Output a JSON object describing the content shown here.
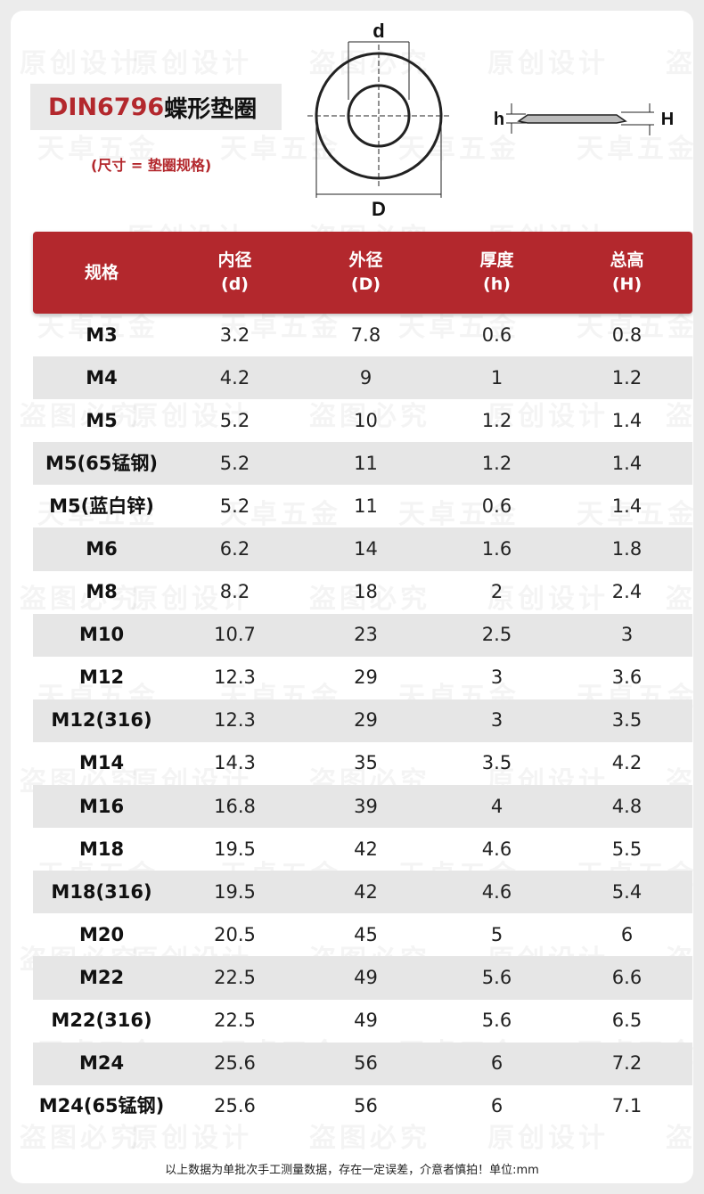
{
  "title": {
    "code": "DIN6796",
    "name": "蝶形垫圈"
  },
  "subtitle": "(尺寸 = 垫圈规格)",
  "diagram": {
    "label_inner": "d",
    "label_outer": "D",
    "label_h": "h",
    "label_H": "H"
  },
  "watermarks": [
    "天卓五金",
    "原创设计",
    "盗图必究"
  ],
  "table": {
    "headers": [
      {
        "line1": "规格",
        "line2": ""
      },
      {
        "line1": "内径",
        "line2": "(d)"
      },
      {
        "line1": "外径",
        "line2": "(D)"
      },
      {
        "line1": "厚度",
        "line2": "(h)"
      },
      {
        "line1": "总高",
        "line2": "(H)"
      }
    ],
    "rows": [
      [
        "M3",
        "3.2",
        "7.8",
        "0.6",
        "0.8"
      ],
      [
        "M4",
        "4.2",
        "9",
        "1",
        "1.2"
      ],
      [
        "M5",
        "5.2",
        "10",
        "1.2",
        "1.4"
      ],
      [
        "M5(65锰钢)",
        "5.2",
        "11",
        "1.2",
        "1.4"
      ],
      [
        "M5(蓝白锌)",
        "5.2",
        "11",
        "0.6",
        "1.4"
      ],
      [
        "M6",
        "6.2",
        "14",
        "1.6",
        "1.8"
      ],
      [
        "M8",
        "8.2",
        "18",
        "2",
        "2.4"
      ],
      [
        "M10",
        "10.7",
        "23",
        "2.5",
        "3"
      ],
      [
        "M12",
        "12.3",
        "29",
        "3",
        "3.6"
      ],
      [
        "M12(316)",
        "12.3",
        "29",
        "3",
        "3.5"
      ],
      [
        "M14",
        "14.3",
        "35",
        "3.5",
        "4.2"
      ],
      [
        "M16",
        "16.8",
        "39",
        "4",
        "4.8"
      ],
      [
        "M18",
        "19.5",
        "42",
        "4.6",
        "5.5"
      ],
      [
        "M18(316)",
        "19.5",
        "42",
        "4.6",
        "5.4"
      ],
      [
        "M20",
        "20.5",
        "45",
        "5",
        "6"
      ],
      [
        "M22",
        "22.5",
        "49",
        "5.6",
        "6.6"
      ],
      [
        "M22(316)",
        "22.5",
        "49",
        "5.6",
        "6.5"
      ],
      [
        "M24",
        "25.6",
        "56",
        "6",
        "7.2"
      ],
      [
        "M24(65锰钢)",
        "25.6",
        "56",
        "6",
        "7.1"
      ]
    ]
  },
  "footer": "以上数据为单批次手工测量数据，存在一定误差，介意者慎拍！单位:mm",
  "colors": {
    "accent": "#b3282d",
    "row_shade": "#e6e6e6",
    "background": "#ececec"
  }
}
